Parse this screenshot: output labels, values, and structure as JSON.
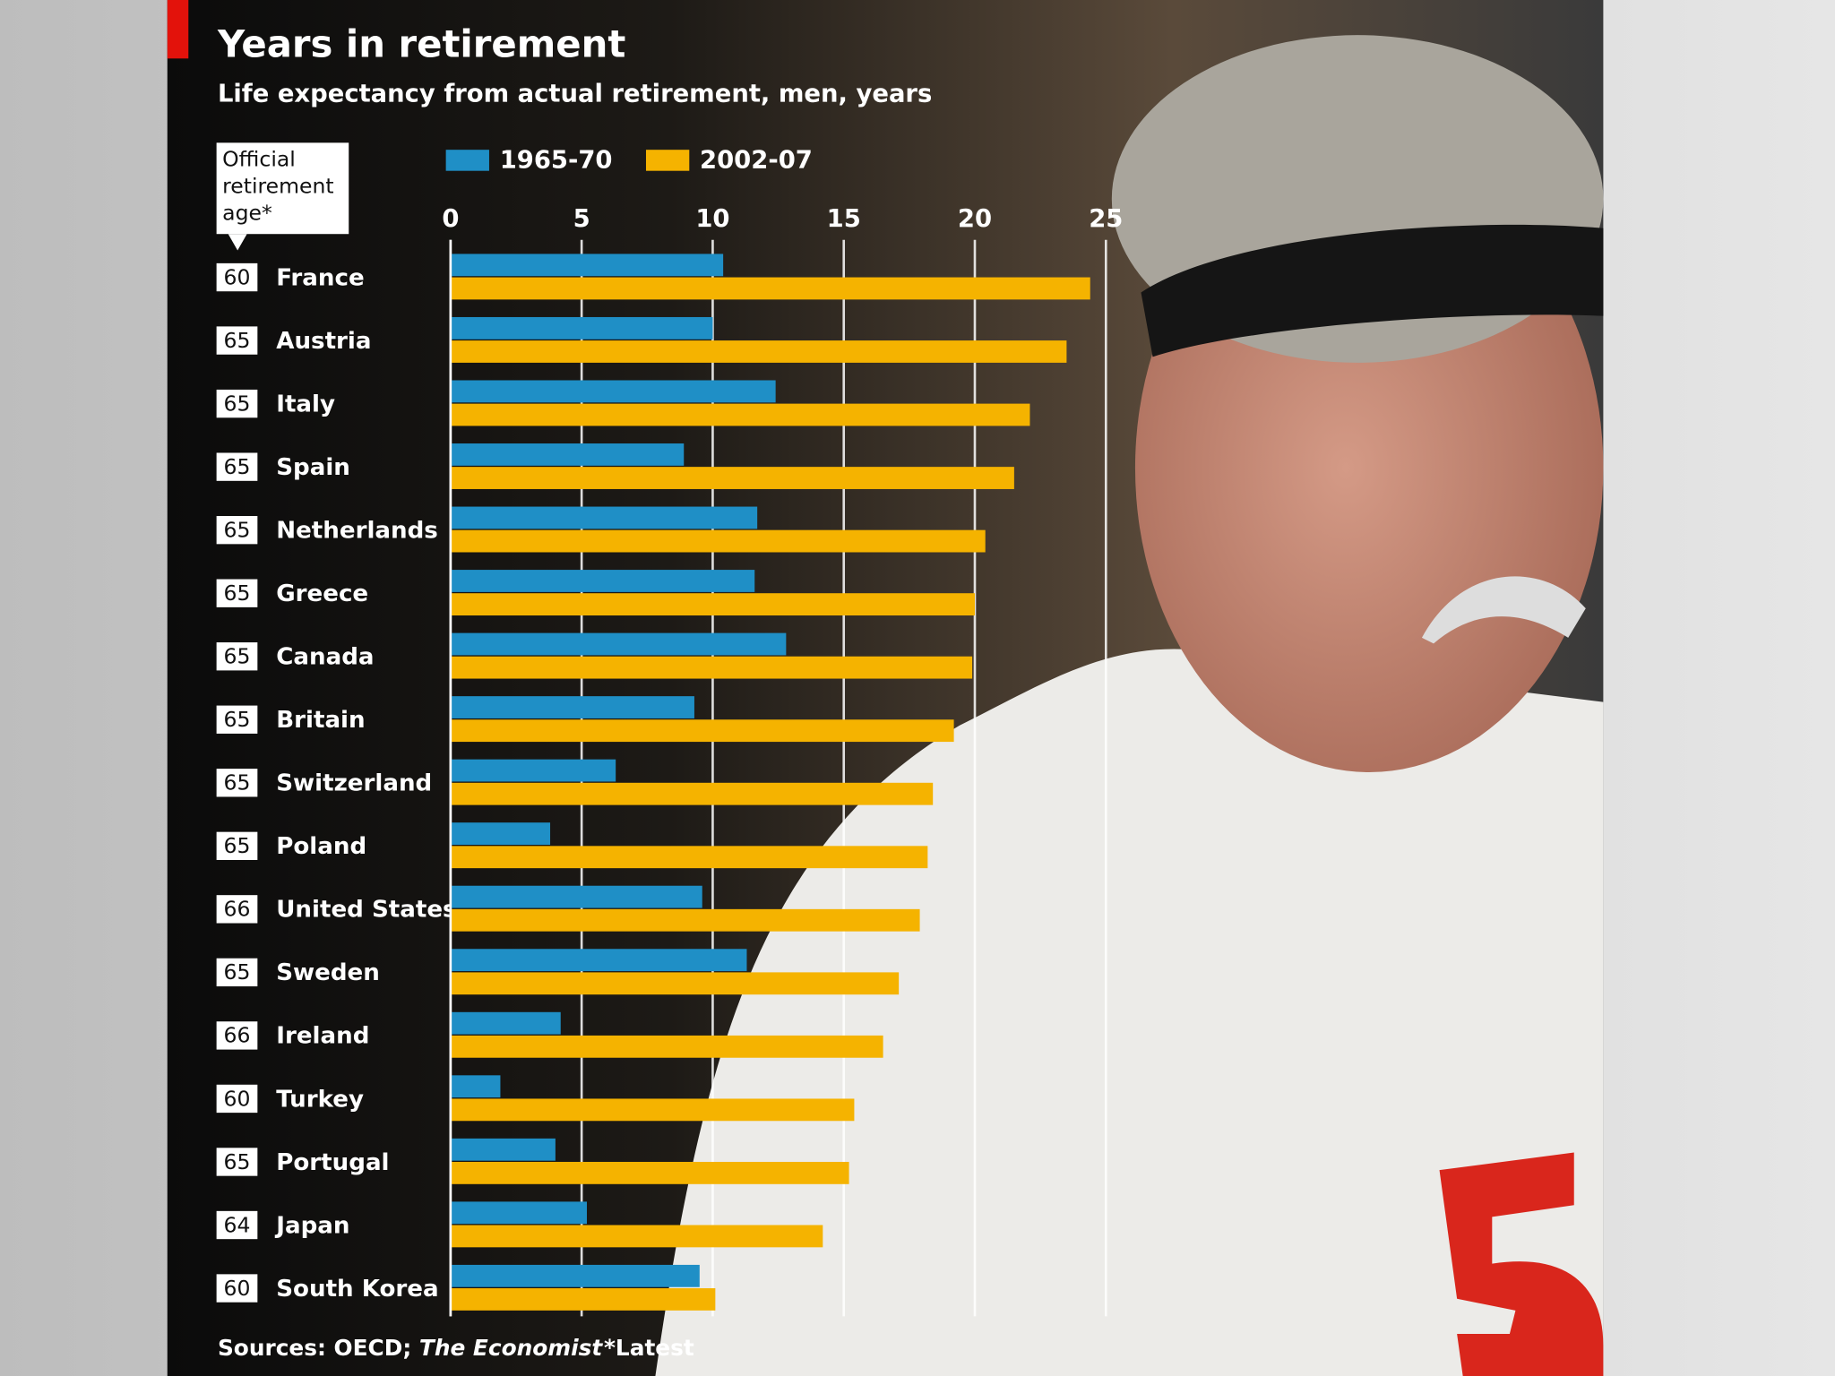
{
  "chart_data": {
    "type": "bar",
    "orientation": "horizontal",
    "title": "Years in retirement",
    "subtitle": "Life expectancy from actual retirement, men, years",
    "retirement_age_label": "Official retirement age*",
    "categories": [
      "France",
      "Austria",
      "Italy",
      "Spain",
      "Netherlands",
      "Greece",
      "Canada",
      "Britain",
      "Switzerland",
      "Poland",
      "United States",
      "Sweden",
      "Ireland",
      "Turkey",
      "Portugal",
      "Japan",
      "South Korea"
    ],
    "retirement_ages": [
      60,
      65,
      65,
      65,
      65,
      65,
      65,
      65,
      65,
      65,
      66,
      65,
      66,
      60,
      65,
      64,
      60
    ],
    "series": [
      {
        "name": "1965-70",
        "color": "#1f8fc6",
        "values": [
          10.4,
          10.0,
          12.4,
          8.9,
          11.7,
          11.6,
          12.8,
          9.3,
          6.3,
          3.8,
          9.6,
          11.3,
          4.2,
          1.9,
          4.0,
          5.2,
          9.5
        ]
      },
      {
        "name": "2002-07",
        "color": "#f5b300",
        "values": [
          24.4,
          23.5,
          22.1,
          21.5,
          20.4,
          20.0,
          19.9,
          19.2,
          18.4,
          18.2,
          17.9,
          17.1,
          16.5,
          15.4,
          15.2,
          14.2,
          10.1
        ]
      }
    ],
    "xlim": [
      0,
      25
    ],
    "xticks": [
      0,
      5,
      10,
      15,
      20,
      25
    ],
    "grid": true,
    "source": "Sources: OECD;",
    "source_publication": "The Economist",
    "footnote": "*Latest"
  }
}
